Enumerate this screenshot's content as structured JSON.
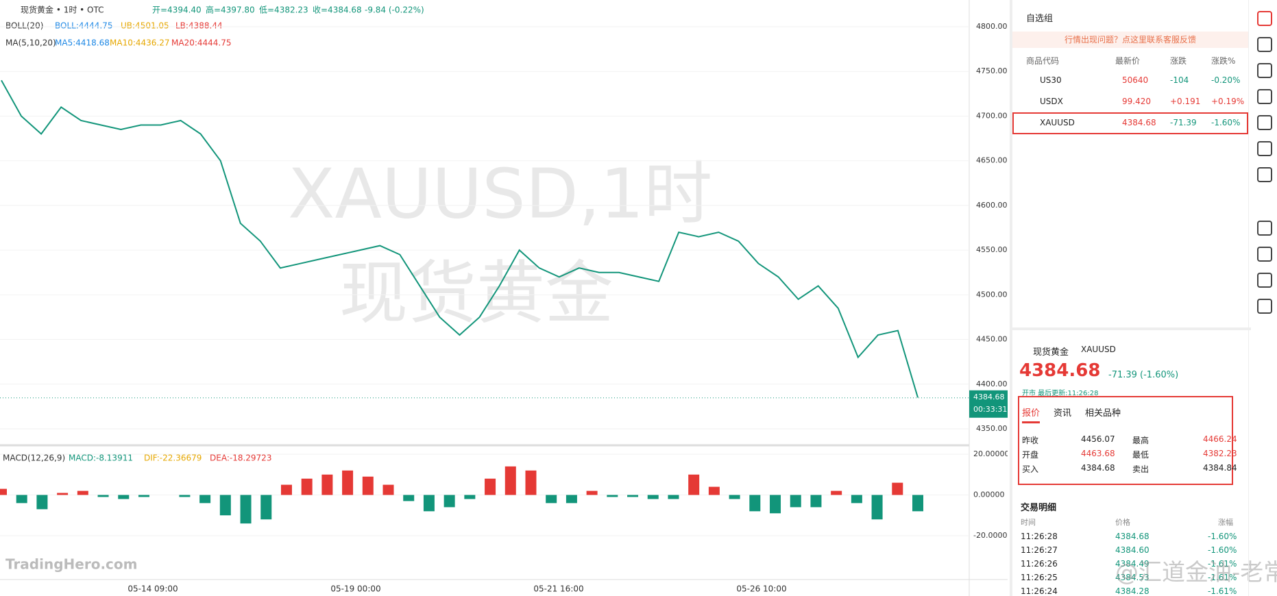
{
  "header": {
    "symbol": "现货黄金 • 1时 • OTC",
    "open": "开=4394.40",
    "high": "高=4397.80",
    "low": "低=4382.23",
    "close": "收=4384.68",
    "change": "-9.84 (-0.22%)",
    "boll": "BOLL(20)",
    "boll_mid": "BOLL:4444.75",
    "boll_ub": "UB:4501.05",
    "boll_lb": "LB:4388.44",
    "ma": "MA(5,10,20)",
    "ma5": "MA5:4418.68",
    "ma10": "MA10:4436.27",
    "ma20": "MA20:4444.75"
  },
  "watermark": {
    "line1": "XAUUSD,1时",
    "line2": "现货黄金"
  },
  "chart": {
    "price_ticks": [
      {
        "value": 4800,
        "label": "4800.00"
      },
      {
        "value": 4750,
        "label": "4750.00"
      },
      {
        "value": 4700,
        "label": "4700.00"
      },
      {
        "value": 4650,
        "label": "4650.00"
      },
      {
        "value": 4600,
        "label": "4600.00"
      },
      {
        "value": 4550,
        "label": "4550.00"
      },
      {
        "value": 4500,
        "label": "4500.00"
      },
      {
        "value": 4450,
        "label": "4450.00"
      },
      {
        "value": 4400,
        "label": "4400.00"
      },
      {
        "value": 4350,
        "label": "4350.00"
      }
    ],
    "close_approx": [
      4740,
      4700,
      4680,
      4710,
      4695,
      4690,
      4685,
      4690,
      4690,
      4695,
      4680,
      4650,
      4580,
      4560,
      4530,
      4535,
      4540,
      4545,
      4550,
      4555,
      4545,
      4510,
      4475,
      4455,
      4475,
      4510,
      4550,
      4530,
      4520,
      4530,
      4525,
      4525,
      4520,
      4515,
      4570,
      4565,
      4570,
      4560,
      4535,
      4520,
      4495,
      4510,
      4485,
      4430,
      4455,
      4460,
      4385
    ],
    "last_price": {
      "value": 4384.68,
      "label": "4384.68"
    },
    "countdown": "00:33:31",
    "dates": [
      "05-14 09:00",
      "05-19 00:00",
      "05-21 16:00",
      "05-26 10:00"
    ],
    "macd_title": "MACD(12,26,9)",
    "macd_value": "MACD:-8.13911",
    "dif": "DIF:-22.36679",
    "dea": "DEA:-18.29723",
    "macd_ticks": [
      {
        "value": 20,
        "label": "20.00000"
      },
      {
        "value": 0,
        "label": "0.00000"
      },
      {
        "value": -20,
        "label": "-20.00000"
      }
    ],
    "macd_hist": [
      3,
      -4,
      -7,
      1,
      2,
      -1,
      -2,
      -1,
      0,
      -1,
      -4,
      -10,
      -14,
      -12,
      5,
      8,
      10,
      12,
      9,
      5,
      -3,
      -8,
      -6,
      -2,
      8,
      14,
      12,
      -4,
      -4,
      2,
      -1,
      -1,
      -2,
      -2,
      10,
      4,
      -2,
      -8,
      -9,
      -6,
      -6,
      2,
      -4,
      -12,
      6,
      -8
    ],
    "logo": "TradingHero.com"
  },
  "watchlist": {
    "title": "自选组",
    "notice": "行情出现问题？点这里联系客服反馈",
    "columns": [
      "商品代码",
      "最新价",
      "涨跌",
      "涨跌%"
    ],
    "rows": [
      [
        "US30",
        "50640",
        "-104",
        "-0.20%"
      ],
      [
        "USDX",
        "99.420",
        "+0.191",
        "+0.19%"
      ],
      [
        "XAUUSD",
        "4384.68",
        "-71.39",
        "-1.60%"
      ]
    ]
  },
  "quote": {
    "name": "现货黄金",
    "symbol": "XAUUSD",
    "price": "4384.68",
    "change": "-71.39 (-1.60%)",
    "status": "开市 最后更新:11:26:28",
    "tabs": [
      "报价",
      "资讯",
      "相关品种"
    ],
    "rows": [
      [
        "昨收",
        "4456.07",
        "最高",
        "4466.24"
      ],
      [
        "开盘",
        "4463.68",
        "最低",
        "4382.23"
      ],
      [
        "买入",
        "4384.68",
        "卖出",
        "4384.84"
      ]
    ]
  },
  "trades": {
    "title": "交易明细",
    "columns": [
      "时间",
      "价格",
      "涨幅"
    ],
    "rows": [
      [
        "11:26:28",
        "4384.68",
        "-1.60%"
      ],
      [
        "11:26:27",
        "4384.60",
        "-1.60%"
      ],
      [
        "11:26:26",
        "4384.49",
        "-1.61%"
      ],
      [
        "11:26:25",
        "4384.53",
        "-1.61%"
      ],
      [
        "11:26:24",
        "4384.28",
        "-1.61%"
      ]
    ]
  },
  "credit": "@汇道金油-老常"
}
